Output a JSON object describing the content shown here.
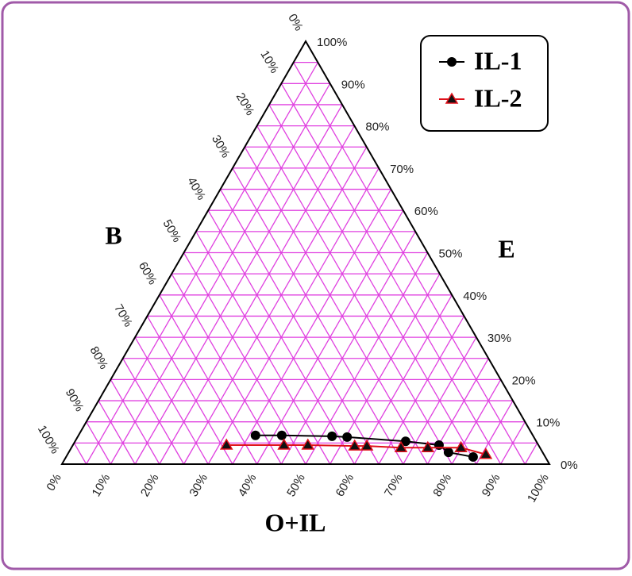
{
  "chart_data": {
    "type": "ternary",
    "axis_labels": {
      "b": "B",
      "e": "E",
      "o": "O+IL"
    },
    "components": [
      "O+IL",
      "E",
      "B"
    ],
    "grid_color": "#e040e0",
    "minor_ticks": [
      5,
      15,
      25,
      35,
      45,
      55,
      65,
      75,
      85,
      95
    ],
    "oticks": [
      {
        "value": 0,
        "label": "0%"
      },
      {
        "value": 10,
        "label": "10%"
      },
      {
        "value": 20,
        "label": "20%"
      },
      {
        "value": 30,
        "label": "30%"
      },
      {
        "value": 40,
        "label": "40%"
      },
      {
        "value": 50,
        "label": "50%"
      },
      {
        "value": 60,
        "label": "60%"
      },
      {
        "value": 70,
        "label": "70%"
      },
      {
        "value": 80,
        "label": "80%"
      },
      {
        "value": 90,
        "label": "90%"
      },
      {
        "value": 100,
        "label": "100%"
      }
    ],
    "eticks": [
      {
        "value": 0,
        "label": "0%"
      },
      {
        "value": 10,
        "label": "10%"
      },
      {
        "value": 20,
        "label": "20%"
      },
      {
        "value": 30,
        "label": "30%"
      },
      {
        "value": 40,
        "label": "40%"
      },
      {
        "value": 50,
        "label": "50%"
      },
      {
        "value": 60,
        "label": "60%"
      },
      {
        "value": 70,
        "label": "70%"
      },
      {
        "value": 80,
        "label": "80%"
      },
      {
        "value": 90,
        "label": "90%"
      },
      {
        "value": 100,
        "label": "100%"
      }
    ],
    "bticks": [
      {
        "value": 0,
        "label": "0%"
      },
      {
        "value": 10,
        "label": "10%"
      },
      {
        "value": 20,
        "label": "20%"
      },
      {
        "value": 30,
        "label": "30%"
      },
      {
        "value": 40,
        "label": "40%"
      },
      {
        "value": 50,
        "label": "50%"
      },
      {
        "value": 60,
        "label": "60%"
      },
      {
        "value": 70,
        "label": "70%"
      },
      {
        "value": 80,
        "label": "80%"
      },
      {
        "value": 90,
        "label": "90%"
      },
      {
        "value": 100,
        "label": "100%"
      }
    ],
    "series": [
      {
        "name": "IL-1",
        "color": "#000000",
        "marker": "circle",
        "values": [
          [
            36.3,
            6.8,
            56.9
          ],
          [
            41.7,
            6.8,
            51.5
          ],
          [
            52.1,
            6.6,
            41.3
          ],
          [
            55.3,
            6.4,
            38.3
          ],
          [
            67.8,
            5.4,
            26.8
          ],
          [
            75.1,
            4.5,
            20.4
          ],
          [
            77.9,
            2.8,
            19.3
          ],
          [
            83.5,
            1.7,
            14.8
          ]
        ]
      },
      {
        "name": "IL-2",
        "color": "#e0101a",
        "marker": "triangle",
        "values": [
          [
            31.5,
            4.5,
            64.0
          ],
          [
            43.3,
            4.5,
            52.2
          ],
          [
            48.2,
            4.5,
            47.3
          ],
          [
            57.9,
            4.3,
            37.8
          ],
          [
            60.4,
            4.3,
            35.3
          ],
          [
            67.6,
            3.9,
            28.5
          ],
          [
            73.1,
            3.9,
            23.0
          ],
          [
            79.9,
            3.9,
            16.2
          ],
          [
            85.8,
            2.3,
            11.9
          ]
        ]
      }
    ]
  }
}
